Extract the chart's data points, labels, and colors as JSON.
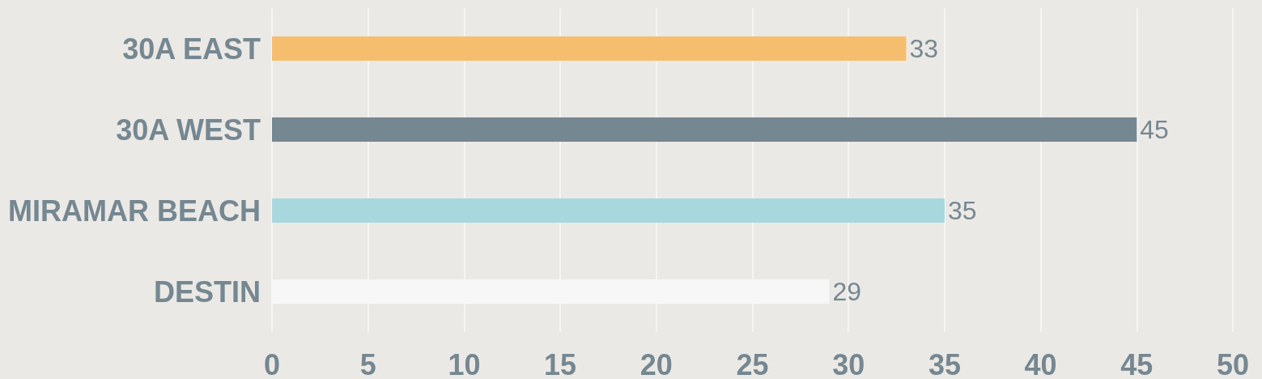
{
  "chart_data": {
    "type": "bar",
    "orientation": "horizontal",
    "categories": [
      "30A EAST",
      "30A WEST",
      "MIRAMAR BEACH",
      "DESTIN"
    ],
    "values": [
      33,
      45,
      35,
      29
    ],
    "colors": [
      "#f5be6e",
      "#758791",
      "#a8d8de",
      "#f7f7f7"
    ],
    "xlim": [
      0,
      50
    ],
    "xticks": [
      0,
      5,
      10,
      15,
      20,
      25,
      30,
      35,
      40,
      45,
      50
    ],
    "grid": "x",
    "data_labels": true
  }
}
